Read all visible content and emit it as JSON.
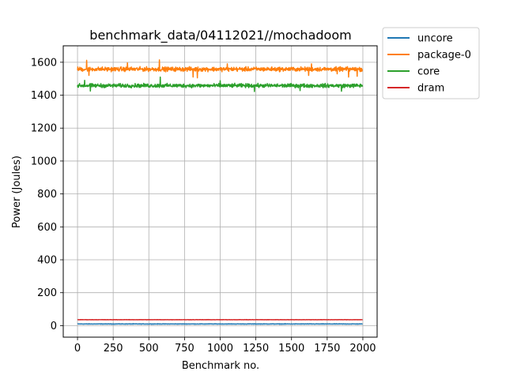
{
  "chart_data": {
    "type": "line",
    "title": "benchmark_data/04112021//mochadoom",
    "xlabel": "Benchmark no.",
    "ylabel": "Power (Joules)",
    "xlim": [
      -100,
      2100
    ],
    "ylim": [
      -70,
      1700
    ],
    "xticks": [
      0,
      250,
      500,
      750,
      1000,
      1250,
      1500,
      1750,
      2000
    ],
    "yticks": [
      0,
      200,
      400,
      600,
      800,
      1000,
      1200,
      1400,
      1600
    ],
    "grid": true,
    "legend_position": "outside-top-right",
    "n_points": 2000,
    "series": [
      {
        "name": "uncore",
        "color": "#1f77b4",
        "level": 10,
        "noise": 1,
        "spikes": []
      },
      {
        "name": "package-0",
        "color": "#ff7f0e",
        "level": 1558,
        "noise": 9,
        "spikes": [
          [
            65,
            1612
          ],
          [
            80,
            1520
          ],
          [
            350,
            1596
          ],
          [
            575,
            1614
          ],
          [
            810,
            1510
          ],
          [
            840,
            1505
          ],
          [
            1050,
            1590
          ],
          [
            1620,
            1520
          ],
          [
            1640,
            1590
          ],
          [
            1820,
            1530
          ],
          [
            1900,
            1510
          ],
          [
            1960,
            1515
          ]
        ]
      },
      {
        "name": "core",
        "color": "#2ca02c",
        "level": 1458,
        "noise": 8,
        "spikes": [
          [
            50,
            1490
          ],
          [
            90,
            1425
          ],
          [
            580,
            1510
          ],
          [
            1000,
            1488
          ],
          [
            1240,
            1422
          ],
          [
            1560,
            1428
          ],
          [
            1850,
            1424
          ]
        ]
      },
      {
        "name": "dram",
        "color": "#d62728",
        "level": 36,
        "noise": 0.6,
        "spikes": []
      }
    ]
  }
}
